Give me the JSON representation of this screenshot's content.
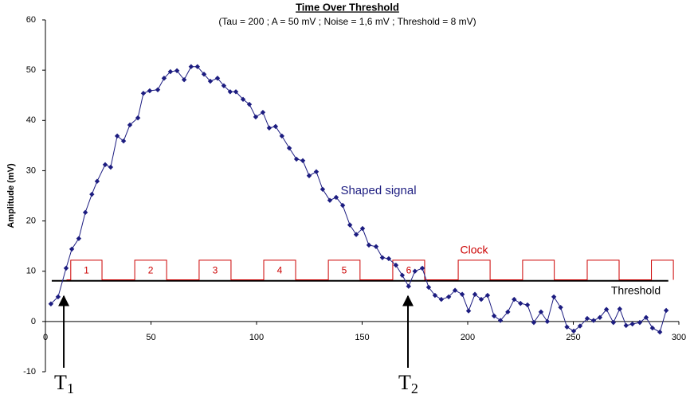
{
  "chart_data": {
    "type": "line",
    "title": "Time Over Threshold",
    "subtitle": "(Tau = 200 ; A = 50 mV ; Noise = 1,6 mV ; Threshold = 8 mV)",
    "y_label": "Amplitude (mV)",
    "xlim": [
      0,
      300
    ],
    "xticks": [
      0,
      50,
      100,
      150,
      200,
      250,
      300
    ],
    "ylim": [
      -10,
      60
    ],
    "yticks": [
      -10,
      0,
      10,
      20,
      30,
      40,
      50,
      60
    ],
    "grid": false,
    "series": [
      {
        "name": "Shaped signal",
        "color": "#1c1c80",
        "x": [
          2.6,
          6,
          9.8,
          12.5,
          15.8,
          18.9,
          22,
          24.5,
          28.3,
          30.9,
          34,
          37,
          40,
          43.8,
          46.4,
          49.4,
          53.2,
          56.2,
          59.2,
          62.3,
          65.7,
          69,
          72,
          75.1,
          78.1,
          81.5,
          84.5,
          87.5,
          90.2,
          93.6,
          96.6,
          99.6,
          103,
          106,
          109,
          112,
          115.5,
          118.9,
          121.9,
          124.9,
          128.3,
          131.3,
          134.7,
          137.7,
          140.8,
          144.2,
          147.2,
          150.2,
          153.2,
          156.6,
          159.6,
          162.6,
          166,
          169,
          172,
          175,
          178.5,
          181.5,
          184.5,
          187.5,
          191,
          194,
          197.4,
          200.4,
          203.4,
          206.4,
          209.4,
          212.5,
          215.5,
          219,
          222,
          225,
          228.3,
          231.3,
          234.7,
          237.7,
          240.8,
          244,
          247,
          250.2,
          253.2,
          256.6,
          259.6,
          262.6,
          265.7,
          269,
          272,
          275,
          278,
          281.5,
          284.5,
          287.5,
          291,
          294
        ],
        "values": [
          3.5,
          4.9,
          10.6,
          14.4,
          16.5,
          21.7,
          25.3,
          27.9,
          31.2,
          30.7,
          36.9,
          35.9,
          39.1,
          40.5,
          45.4,
          45.9,
          46.1,
          48.4,
          49.7,
          49.9,
          48.1,
          50.7,
          50.7,
          49.2,
          47.8,
          48.4,
          46.9,
          45.7,
          45.7,
          44.2,
          43.2,
          40.7,
          41.6,
          38.5,
          38.8,
          36.9,
          34.5,
          32.3,
          32,
          29,
          29.8,
          26.3,
          24.1,
          24.7,
          23.1,
          19.2,
          17.3,
          18.5,
          15.2,
          14.9,
          12.7,
          12.5,
          11.2,
          9.2,
          7,
          10,
          10.6,
          6.8,
          5.2,
          4.4,
          4.9,
          6.2,
          5.4,
          2.1,
          5.4,
          4.4,
          5.2,
          1.1,
          0.2,
          1.9,
          4.4,
          3.6,
          3.3,
          -0.2,
          1.9,
          0,
          4.9,
          2.8,
          -1.1,
          -1.9,
          -0.9,
          0.6,
          0.2,
          0.8,
          2.4,
          -0.2,
          2.5,
          -0.8,
          -0.5,
          -0.2,
          0.8,
          -1.3,
          -2.1,
          2.2
        ]
      }
    ],
    "clock": {
      "name": "Clock",
      "color": "#cc0000",
      "low": 8.3,
      "high": 12.2,
      "start": 10,
      "edges": [
        12,
        26.8,
        42.3,
        57.4,
        72.8,
        87.9,
        103.4,
        118.5,
        134,
        149,
        164.5,
        179.6,
        195.5,
        210.6,
        226,
        241,
        256.6,
        271.7,
        287,
        297.4
      ],
      "pulse_labels": [
        "1",
        "2",
        "3",
        "4",
        "5",
        "6"
      ]
    },
    "threshold": {
      "name": "Threshold",
      "color": "#000000",
      "value": 8.1,
      "x": [
        3,
        295
      ]
    },
    "markers": [
      {
        "label": "T",
        "sub": "1",
        "x": 8.7
      },
      {
        "label": "T",
        "sub": "2",
        "x": 171.7
      }
    ]
  }
}
